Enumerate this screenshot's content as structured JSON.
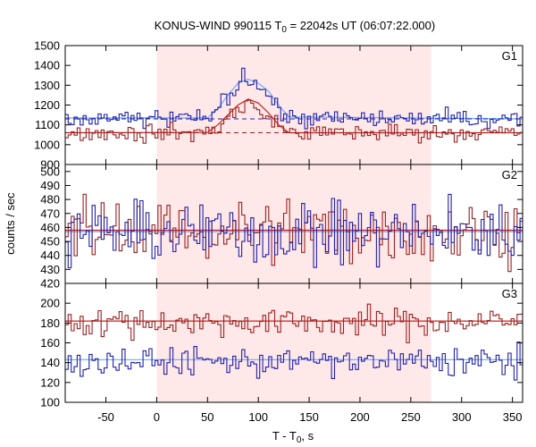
{
  "chart_data": {
    "type": "line",
    "title": {
      "prefix": "KONUS-WIND 990115 T",
      "sub": "0",
      "suffix": " = 22042s UT (06:07:22.000)"
    },
    "xlabel": {
      "prefix": "T - T",
      "sub": "0",
      "suffix": ", s"
    },
    "ylabel": "counts / sec",
    "xlim": [
      -90,
      360
    ],
    "xticks": [
      "-50",
      "0",
      "50",
      "100",
      "150",
      "200",
      "250",
      "300",
      "350"
    ],
    "xtick_values": [
      -50,
      0,
      50,
      100,
      150,
      200,
      250,
      300,
      350
    ],
    "highlight_interval": [
      0,
      270
    ],
    "colors": {
      "blue": "#2222aa",
      "red": "#992222",
      "fit_blue": "#66aaff",
      "fit_red": "#cc2222",
      "highlight": "#ffe8e8"
    },
    "panels": [
      {
        "label": "G1",
        "ylim": [
          900,
          1500
        ],
        "yticks": [
          "900",
          "1000",
          "1100",
          "1200",
          "1300",
          "1400",
          "1500"
        ],
        "ytick_values": [
          900,
          1000,
          1100,
          1200,
          1300,
          1400,
          1500
        ],
        "series": [
          {
            "color": "blue",
            "background": 1130,
            "noise": 22,
            "pulse": [
              [
                -90,
                0
              ],
              [
                50,
                0
              ],
              [
                60,
                60
              ],
              [
                70,
                120
              ],
              [
                80,
                150
              ],
              [
                85,
                260
              ],
              [
                90,
                200
              ],
              [
                95,
                190
              ],
              [
                100,
                170
              ],
              [
                110,
                120
              ],
              [
                120,
                50
              ],
              [
                130,
                0
              ],
              [
                360,
                0
              ]
            ],
            "fit": [
              [
                -90,
                1135
              ],
              [
                50,
                1135
              ],
              [
                60,
                1180
              ],
              [
                70,
                1250
              ],
              [
                80,
                1310
              ],
              [
                90,
                1330
              ],
              [
                100,
                1310
              ],
              [
                110,
                1270
              ],
              [
                120,
                1200
              ],
              [
                130,
                1140
              ],
              [
                360,
                1130
              ]
            ],
            "baseline": 1130
          },
          {
            "color": "red",
            "background": 1060,
            "noise": 22,
            "pulse": [
              [
                -90,
                0
              ],
              [
                50,
                0
              ],
              [
                60,
                30
              ],
              [
                70,
                80
              ],
              [
                80,
                110
              ],
              [
                90,
                150
              ],
              [
                100,
                110
              ],
              [
                110,
                80
              ],
              [
                120,
                40
              ],
              [
                130,
                0
              ],
              [
                360,
                0
              ]
            ],
            "fit": [
              [
                -90,
                1060
              ],
              [
                50,
                1062
              ],
              [
                60,
                1100
              ],
              [
                70,
                1150
              ],
              [
                80,
                1200
              ],
              [
                90,
                1230
              ],
              [
                100,
                1210
              ],
              [
                110,
                1160
              ],
              [
                120,
                1100
              ],
              [
                130,
                1060
              ],
              [
                360,
                1060
              ]
            ],
            "baseline": 1060
          }
        ]
      },
      {
        "label": "G2",
        "ylim": [
          420,
          505
        ],
        "yticks": [
          "420",
          "430",
          "440",
          "450",
          "460",
          "470",
          "480",
          "490",
          "500"
        ],
        "ytick_values": [
          420,
          430,
          440,
          450,
          460,
          470,
          480,
          490,
          500
        ],
        "series": [
          {
            "color": "red",
            "background": 458,
            "noise": 11,
            "fit": [
              [
                -90,
                458
              ],
              [
                360,
                458
              ]
            ]
          },
          {
            "color": "blue",
            "background": 456,
            "noise": 11,
            "fit": [
              [
                -90,
                457
              ],
              [
                360,
                457
              ]
            ]
          }
        ]
      },
      {
        "label": "G3",
        "ylim": [
          100,
          220
        ],
        "yticks": [
          "100",
          "120",
          "140",
          "160",
          "180",
          "200"
        ],
        "ytick_values": [
          100,
          120,
          140,
          160,
          180,
          200
        ],
        "series": [
          {
            "color": "red",
            "background": 181,
            "noise": 7,
            "fit": [
              [
                -90,
                182
              ],
              [
                360,
                182
              ]
            ]
          },
          {
            "color": "blue",
            "background": 141,
            "noise": 7,
            "fit": [
              [
                -90,
                143
              ],
              [
                360,
                143
              ]
            ]
          }
        ]
      }
    ],
    "bin_width": 2.944
  }
}
